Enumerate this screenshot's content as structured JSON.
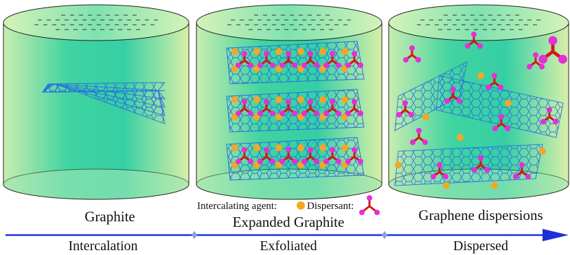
{
  "panels": [
    {
      "label": "Graphite"
    },
    {
      "label": "Expanded Graphite"
    },
    {
      "label": "Graphene dispersions"
    }
  ],
  "legend": {
    "intercalating_agent": "Intercalating agent:",
    "dispersant": "Dispersant:"
  },
  "process": {
    "stages": [
      "Intercalation",
      "Exfoliated",
      "Dispersed"
    ]
  }
}
